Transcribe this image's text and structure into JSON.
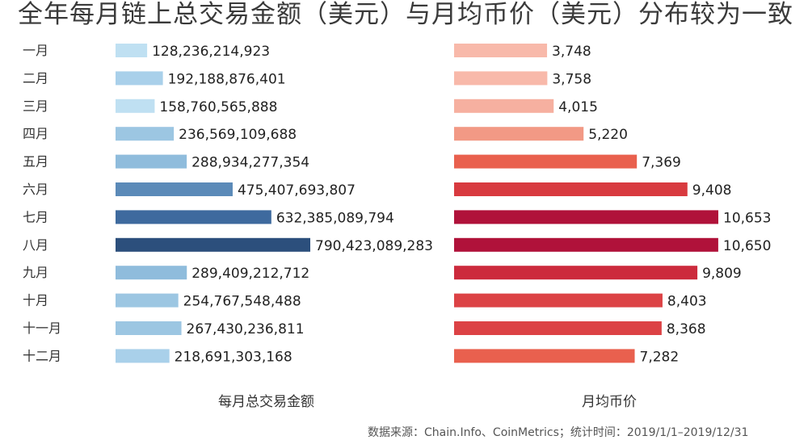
{
  "chart_data": [
    {
      "type": "bar",
      "orientation": "horizontal",
      "xlabel": "每月总交易金额",
      "categories": [
        "一月",
        "二月",
        "三月",
        "四月",
        "五月",
        "六月",
        "七月",
        "八月",
        "九月",
        "十月",
        "十一月",
        "十二月"
      ],
      "values": [
        128236214923,
        192188876401,
        158760565888,
        236569109688,
        288934277354,
        475407693807,
        632385089794,
        790423089283,
        289409212712,
        254767548488,
        267430236811,
        218691303168
      ],
      "labels": [
        "128,236,214,923",
        "192,188,876,401",
        "158,760,565,888",
        "236,569,109,688",
        "288,934,277,354",
        "475,407,693,807",
        "632,385,089,794",
        "790,423,089,283",
        "289,409,212,712",
        "254,767,548,488",
        "267,430,236,811",
        "218,691,303,168"
      ],
      "colors": [
        "#bfe0f2",
        "#a9d0ea",
        "#bfe0f2",
        "#9cc6e2",
        "#8fbcdc",
        "#5b8ab8",
        "#3e6a9e",
        "#2c4f7c",
        "#8fbcdc",
        "#9cc6e2",
        "#9cc6e2",
        "#a9d0ea"
      ]
    },
    {
      "type": "bar",
      "orientation": "horizontal",
      "xlabel": "月均币价",
      "categories": [
        "一月",
        "二月",
        "三月",
        "四月",
        "五月",
        "六月",
        "七月",
        "八月",
        "九月",
        "十月",
        "十一月",
        "十二月"
      ],
      "values": [
        3748,
        3758,
        4015,
        5220,
        7369,
        9408,
        10653,
        10650,
        9809,
        8403,
        8368,
        7282
      ],
      "labels": [
        "3,748",
        "3,758",
        "4,015",
        "5,220",
        "7,369",
        "9,408",
        "10,653",
        "10,650",
        "9,809",
        "8,403",
        "8,368",
        "7,282"
      ],
      "colors": [
        "#f8b9aa",
        "#f8b9aa",
        "#f6b0a0",
        "#f29985",
        "#e9604e",
        "#d83a3f",
        "#b0123a",
        "#b0123a",
        "#cc2a3c",
        "#dc4245",
        "#dc4245",
        "#e9604e"
      ]
    }
  ],
  "title": "全年每月链上总交易金额（美元）与月均币价（美元）分布较为一致",
  "source": "数据来源：Chain.Info、CoinMetrics；统计时间：2019/1/1–2019/12/31"
}
